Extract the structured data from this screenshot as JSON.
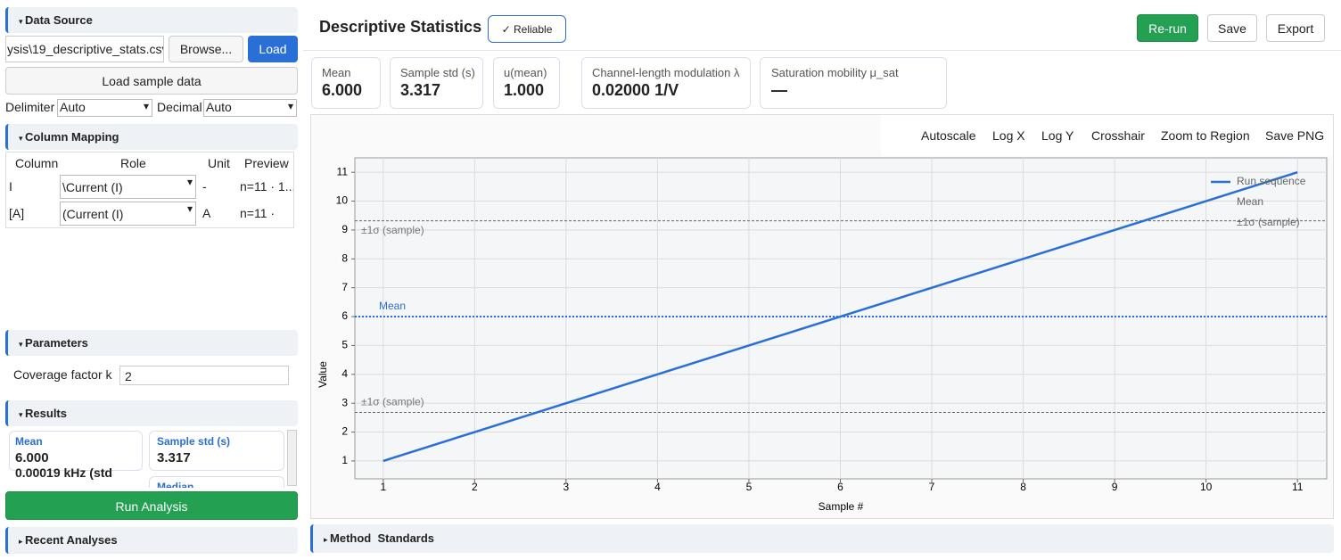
{
  "sidebar": {
    "data_source": {
      "title": "Data Source",
      "file": "ysis\\19_descriptive_stats.csv",
      "browse": "Browse...",
      "load": "Load",
      "sample": "Load sample data",
      "delimiter_label": "Delimiter",
      "delimiter": "Auto",
      "decimal_label": "Decimal",
      "decimal": "Auto"
    },
    "column_mapping": {
      "title": "Column Mapping",
      "headers": [
        "Column",
        "Role",
        "Unit",
        "Preview"
      ],
      "rows": [
        [
          "I",
          "\\Current (I)",
          "-",
          "n=11 · 1..."
        ],
        [
          "[A]",
          "(Current (I)",
          "A",
          "n=11 ·"
        ]
      ]
    },
    "parameters": {
      "title": "Parameters",
      "label": "Coverage factor k",
      "value": "2"
    },
    "results": {
      "title": "Results",
      "cards": [
        {
          "label": "Mean",
          "value": "6.000"
        },
        {
          "label": "Sample std (s)",
          "value": "3.317"
        }
      ],
      "overflow": "0.00019 kHz (std",
      "next": "Median"
    },
    "run": "Run Analysis",
    "recent": "Recent Analyses"
  },
  "header": {
    "title": "Descriptive Statistics",
    "badge": "✓ Reliable",
    "buttons": [
      "Re-run",
      "Save",
      "Export"
    ]
  },
  "metrics": [
    {
      "label": "Mean",
      "value": "6.000"
    },
    {
      "label": "Sample std (s)",
      "value": "3.317"
    },
    {
      "label": "u(mean)",
      "value": "1.000"
    },
    {
      "label": "Channel-length modulation λ",
      "value": "0.02000 1/V"
    },
    {
      "label": "Saturation mobility μ_sat",
      "value": "—"
    }
  ],
  "toolbar": [
    "Autoscale",
    "Log X",
    "Log Y",
    "Crosshair",
    "Zoom to Region",
    "Save PNG"
  ],
  "chart_data": {
    "type": "line",
    "x": [
      1,
      2,
      3,
      4,
      5,
      6,
      7,
      8,
      9,
      10,
      11
    ],
    "series": [
      {
        "name": "Run sequence",
        "color": "#2a6fd6",
        "values": [
          1,
          2,
          3,
          4,
          5,
          6,
          7,
          8,
          9,
          10,
          11
        ]
      }
    ],
    "reference_lines": [
      {
        "name": "Mean",
        "value": 6,
        "color": "#2a6fd6",
        "style": "dotted"
      },
      {
        "name": "±1σ (sample)",
        "value": 9.317,
        "color": "#666666",
        "style": "dashed"
      },
      {
        "name": "±1σ (sample)",
        "value": 2.683,
        "color": "#666666",
        "style": "dashed"
      }
    ],
    "xlabel": "Sample #",
    "ylabel": "Value",
    "xlim": [
      0.69,
      11.32
    ],
    "ylim": [
      0.38,
      11.5
    ],
    "xticks": [
      1,
      2,
      3,
      4,
      5,
      6,
      7,
      8,
      9,
      10,
      11
    ],
    "yticks": [
      1,
      2,
      3,
      4,
      5,
      6,
      7,
      8,
      9,
      10,
      11
    ],
    "grid": true,
    "legend": "upper right"
  },
  "footer": "Method  Standards"
}
